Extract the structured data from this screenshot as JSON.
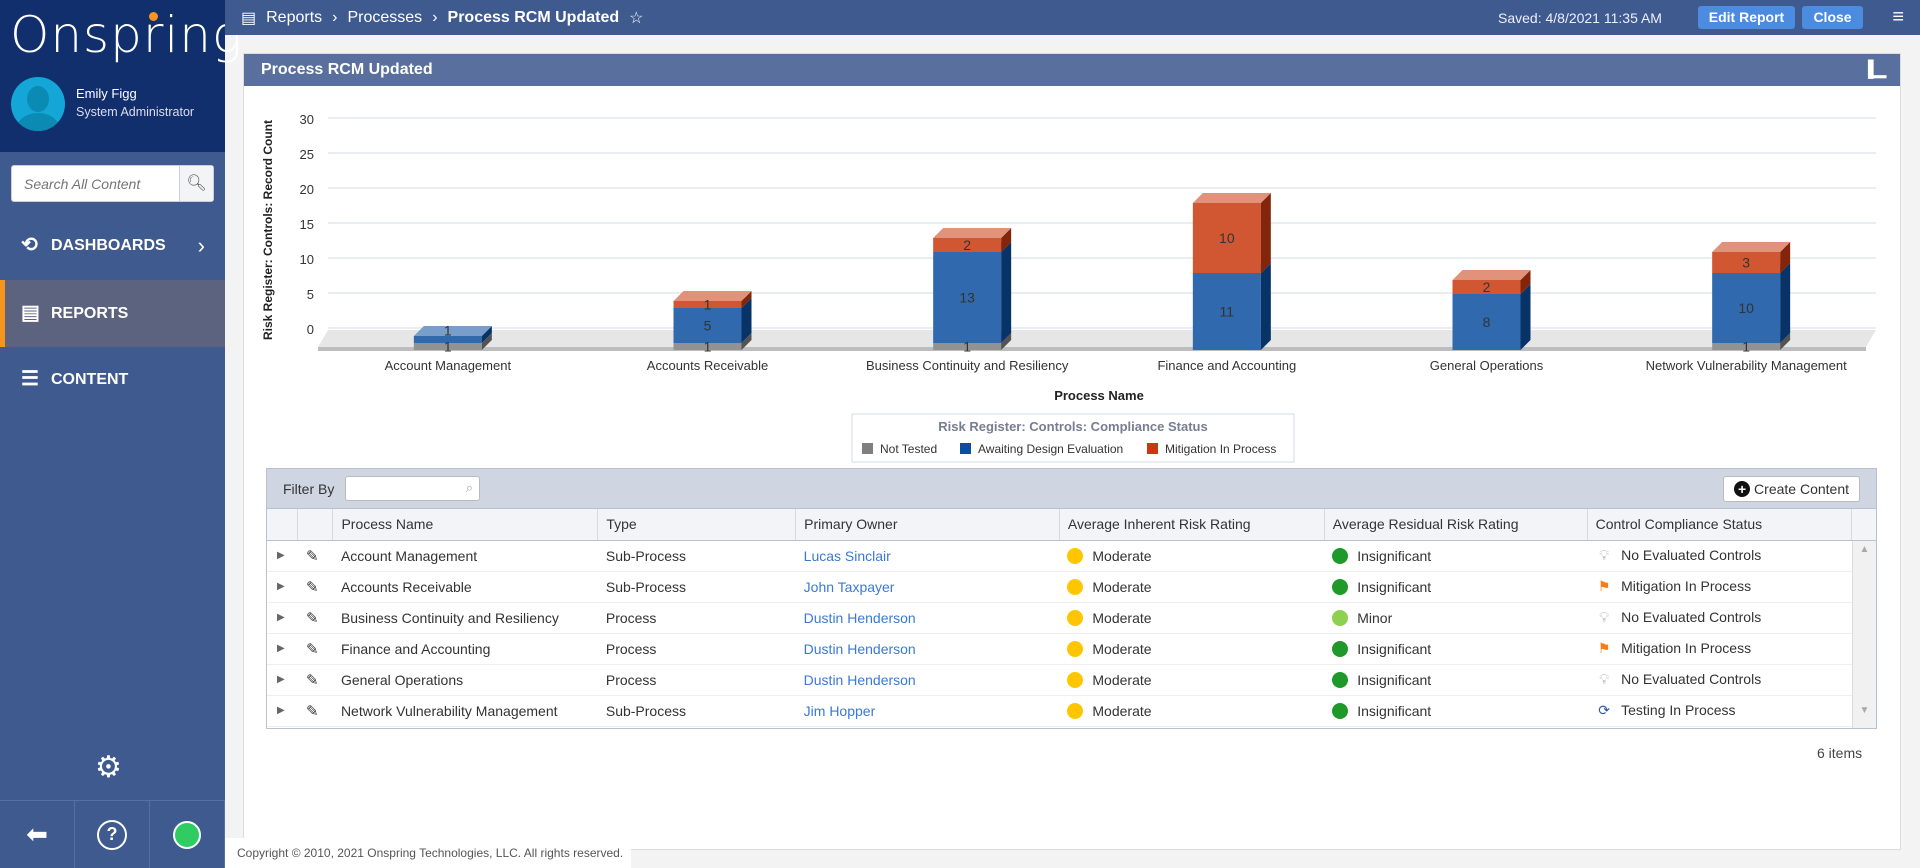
{
  "sidebar": {
    "logo": "Onspring",
    "user": {
      "name": "Emily Figg",
      "role": "System Administrator"
    },
    "search": {
      "placeholder": "Search All Content",
      "icon": "search-icon"
    },
    "nav": [
      {
        "label": "DASHBOARDS",
        "icon": "dashboard-icon",
        "active": false
      },
      {
        "label": "REPORTS",
        "icon": "reports-icon",
        "active": true
      },
      {
        "label": "CONTENT",
        "icon": "layers-icon",
        "active": false
      }
    ],
    "status_color": "#2ecc63"
  },
  "topbar": {
    "breadcrumbs": [
      "Reports",
      "Processes",
      "Process RCM Updated"
    ],
    "saved": "Saved: 4/8/2021 11:35 AM",
    "edit_label": "Edit Report",
    "close_label": "Close"
  },
  "panel": {
    "title": "Process RCM Updated"
  },
  "chart_data": {
    "type": "bar",
    "stacked": true,
    "three_d": true,
    "xlabel": "Process Name",
    "ylabel": "Risk Register: Controls: Record Count",
    "ylim": [
      0,
      30
    ],
    "yticks": [
      0,
      5,
      10,
      15,
      20,
      25,
      30
    ],
    "grid": true,
    "legend_title": "Risk Register: Controls: Compliance Status",
    "legend_position": "bottom",
    "categories": [
      "Account Management",
      "Accounts Receivable",
      "Business Continuity and Resiliency",
      "Finance and Accounting",
      "General Operations",
      "Network Vulnerability Management"
    ],
    "series": [
      {
        "name": "Not Tested",
        "color": "#7f7f7f",
        "values": [
          1,
          1,
          1,
          0,
          0,
          1
        ]
      },
      {
        "name": "Awaiting Design Evaluation",
        "color": "#0b4f9e",
        "values": [
          1,
          5,
          13,
          11,
          8,
          10
        ]
      },
      {
        "name": "Mitigation In Process",
        "color": "#c9390f",
        "values": [
          0,
          1,
          2,
          10,
          2,
          3
        ]
      }
    ]
  },
  "grid": {
    "filter_label": "Filter By",
    "filter_value": "",
    "create_label": "Create Content",
    "columns": [
      "Process Name",
      "Type",
      "Primary Owner",
      "Average Inherent Risk Rating",
      "Average Residual Risk Rating",
      "Control Compliance Status"
    ],
    "rows": [
      {
        "name": "Account Management",
        "type": "Sub-Process",
        "owner": "Lucas Sinclair",
        "inherent": "Moderate",
        "inherent_color": "#ffc600",
        "residual": "Insignificant",
        "residual_color": "#1f9a2a",
        "status": "No Evaluated Controls",
        "status_icon": "lightbulb-icon"
      },
      {
        "name": "Accounts Receivable",
        "type": "Sub-Process",
        "owner": "John Taxpayer",
        "inherent": "Moderate",
        "inherent_color": "#ffc600",
        "residual": "Insignificant",
        "residual_color": "#1f9a2a",
        "status": "Mitigation In Process",
        "status_icon": "flag-icon"
      },
      {
        "name": "Business Continuity and Resiliency",
        "type": "Process",
        "owner": "Dustin Henderson",
        "inherent": "Moderate",
        "inherent_color": "#ffc600",
        "residual": "Minor",
        "residual_color": "#8ed04f",
        "status": "No Evaluated Controls",
        "status_icon": "lightbulb-icon"
      },
      {
        "name": "Finance and Accounting",
        "type": "Process",
        "owner": "Dustin Henderson",
        "inherent": "Moderate",
        "inherent_color": "#ffc600",
        "residual": "Insignificant",
        "residual_color": "#1f9a2a",
        "status": "Mitigation In Process",
        "status_icon": "flag-icon"
      },
      {
        "name": "General Operations",
        "type": "Process",
        "owner": "Dustin Henderson",
        "inherent": "Moderate",
        "inherent_color": "#ffc600",
        "residual": "Insignificant",
        "residual_color": "#1f9a2a",
        "status": "No Evaluated Controls",
        "status_icon": "lightbulb-icon"
      },
      {
        "name": "Network Vulnerability Management",
        "type": "Sub-Process",
        "owner": "Jim Hopper",
        "inherent": "Moderate",
        "inherent_color": "#ffc600",
        "residual": "Insignificant",
        "residual_color": "#1f9a2a",
        "status": "Testing In Process",
        "status_icon": "refresh-icon"
      }
    ],
    "item_count": "6 items"
  },
  "footer": {
    "copyright": "Copyright © 2010, 2021 Onspring Technologies, LLC. All rights reserved."
  }
}
